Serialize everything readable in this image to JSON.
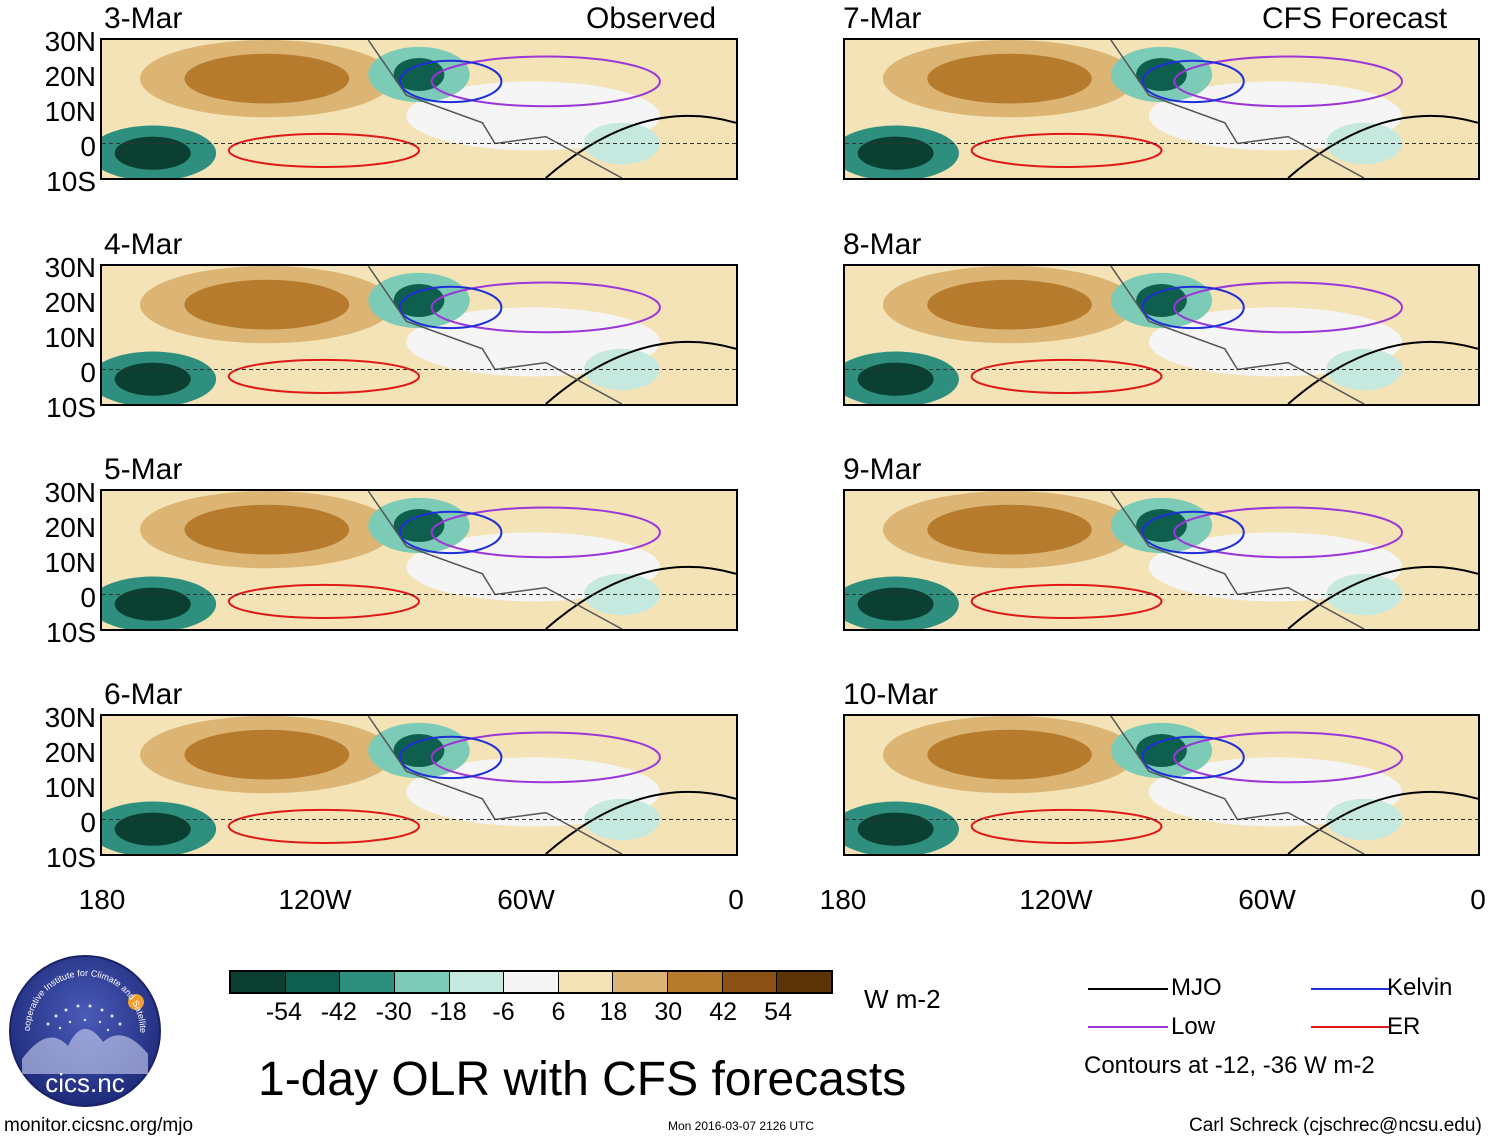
{
  "panels": [
    {
      "date": "3-Mar",
      "tag": "Observed"
    },
    {
      "date": "7-Mar",
      "tag": "CFS Forecast"
    },
    {
      "date": "4-Mar",
      "tag": ""
    },
    {
      "date": "8-Mar",
      "tag": ""
    },
    {
      "date": "5-Mar",
      "tag": ""
    },
    {
      "date": "9-Mar",
      "tag": ""
    },
    {
      "date": "6-Mar",
      "tag": ""
    },
    {
      "date": "10-Mar",
      "tag": ""
    }
  ],
  "lat_labels": [
    "30N",
    "20N",
    "10N",
    "0",
    "10S"
  ],
  "lon_labels": [
    "180",
    "120W",
    "60W",
    "0"
  ],
  "colorbar": {
    "colors": [
      "#0b3f31",
      "#0f5f4f",
      "#2f8f7e",
      "#7ccbb6",
      "#c6e9df",
      "#f5f5f5",
      "#f3e3b6",
      "#dcb574",
      "#b77b2e",
      "#8a5215",
      "#5a3407"
    ],
    "labels": [
      "-54",
      "-42",
      "-30",
      "-18",
      "-6",
      "6",
      "18",
      "30",
      "42",
      "54"
    ],
    "units": "W m-2"
  },
  "legend": {
    "items": [
      {
        "label": "MJO",
        "color": "#000000"
      },
      {
        "label": "Kelvin",
        "color": "#1f2fd8"
      },
      {
        "label": "Low",
        "color": "#9b37d9"
      },
      {
        "label": "ER",
        "color": "#e01818"
      }
    ],
    "note": "Contours at -12, -36 W m-2"
  },
  "logo_text": "cics.nc",
  "logo_ring_text": "Cooperative Institute for Climate and Satellites",
  "title": "1-day OLR with CFS forecasts",
  "footer": {
    "url": "monitor.cicsnc.org/mjo",
    "timestamp": "Mon 2016-03-07 2126 UTC",
    "credit": "Carl Schreck (cjschrec@ncsu.edu)"
  }
}
